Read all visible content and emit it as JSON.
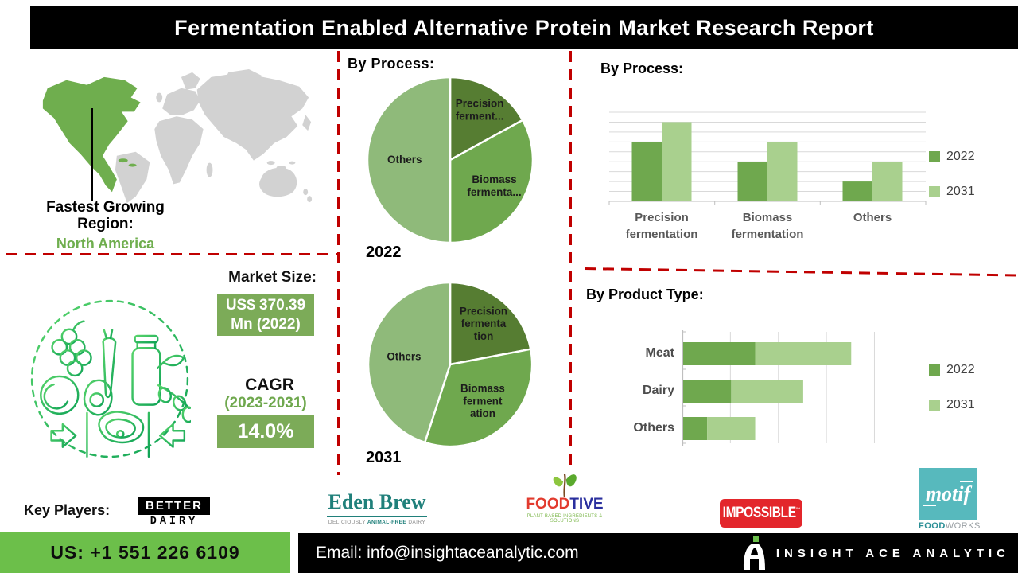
{
  "title": "Fermentation Enabled Alternative Protein Market Research Report",
  "region": {
    "line1": "Fastest Growing",
    "line2": "Region:",
    "value": "North America",
    "value_color": "#6fae4e"
  },
  "market": {
    "label": "Market Size:",
    "value": "US$ 370.39 Mn (2022)",
    "cagr_label": "CAGR",
    "cagr_period": "(2023-2031)",
    "cagr_value": "14.0%",
    "box_color": "#7cab58"
  },
  "colors": {
    "pie_dark": "#567d32",
    "pie_mid": "#6fa84e",
    "pie_light": "#8fba7a",
    "bar_2022": "#6fa84e",
    "bar_2031": "#a9d08e",
    "divider_red": "#c00000",
    "phone_green": "#6cbf4a",
    "map_highlight": "#6fae4e",
    "map_gray": "#d2d2d2"
  },
  "chart_data": [
    {
      "type": "pie",
      "section_title": "By Process:",
      "year": "2022",
      "labels": [
        "Precision fermentation",
        "Biomass fermentation",
        "Others"
      ],
      "values": [
        17,
        33,
        50
      ],
      "colors": [
        "#567d32",
        "#6fa84e",
        "#8fba7a"
      ],
      "display_labels": [
        [
          "Precision",
          "ferment..."
        ],
        [
          "Biomass",
          "fermenta..."
        ],
        [
          "Others"
        ]
      ],
      "label_r": [
        0.7,
        0.62,
        0.55
      ],
      "legend_position": "none"
    },
    {
      "type": "pie",
      "year": "2031",
      "labels": [
        "Precision fermentation",
        "Biomass fermentation",
        "Others"
      ],
      "values": [
        22,
        33,
        45
      ],
      "colors": [
        "#567d32",
        "#6fa84e",
        "#8fba7a"
      ],
      "display_labels": [
        [
          "Precision",
          "fermenta",
          "tion"
        ],
        [
          "Biomass",
          "ferment",
          "ation"
        ],
        [
          "Others"
        ]
      ],
      "label_r": [
        0.64,
        0.6,
        0.57
      ],
      "legend_position": "none"
    },
    {
      "type": "bar",
      "section_title": "By Process:",
      "categories": [
        "Precision fermentation",
        "Biomass fermentation",
        "Others"
      ],
      "series": [
        {
          "name": "2022",
          "color": "#6fa84e",
          "values": [
            6,
            4,
            2
          ]
        },
        {
          "name": "2031",
          "color": "#a9d08e",
          "values": [
            8,
            6,
            4
          ]
        }
      ],
      "ylim": [
        0,
        9
      ],
      "gridlines": true,
      "legend_position": "right"
    },
    {
      "type": "bar-horizontal-stacked",
      "section_title": "By Product Type:",
      "categories": [
        "Meat",
        "Dairy",
        "Others"
      ],
      "series": [
        {
          "name": "2022",
          "color": "#6fa84e",
          "values": [
            1.5,
            1.0,
            0.5
          ]
        },
        {
          "name": "2031",
          "color": "#a9d08e",
          "values": [
            2.0,
            1.5,
            1.0
          ]
        }
      ],
      "xlim": [
        0,
        5.5
      ],
      "gridlines": true,
      "legend_position": "right"
    }
  ],
  "key_players": {
    "label": "Key Players:",
    "better_dairy": {
      "top": "BETTER",
      "bottom": "DAIRY"
    },
    "eden_brew": {
      "name": "Eden Brew",
      "tagline_1": "DELICIOUSLY",
      "tagline_2": "ANIMAL-FREE",
      "tagline_3": "DAIRY"
    },
    "fooditive": {
      "part1": "FOOD",
      "part2": "TIVE",
      "tagline": "PLANT-BASED INGREDIENTS & SOLUTIONS"
    },
    "impossible": {
      "name": "IMPOSSIBLE"
    },
    "motif": {
      "name": "motif",
      "sub1": "FOOD",
      "sub2": "WORKS"
    }
  },
  "contact": {
    "phone": "US: +1 551 226 6109",
    "email": "Email: info@insightaceanalytic.com",
    "brand": "INSIGHT ACE ANALYTIC"
  }
}
